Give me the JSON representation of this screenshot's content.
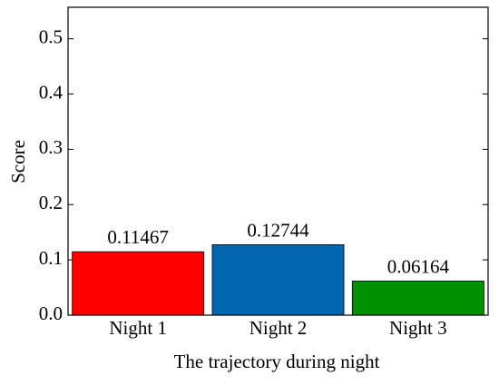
{
  "chart_data": {
    "type": "bar",
    "categories": [
      "Night 1",
      "Night 2",
      "Night 3"
    ],
    "values": [
      0.11467,
      0.12744,
      0.06164
    ],
    "colors": [
      "#ff0000",
      "#0066b0",
      "#009000"
    ],
    "x_label": "The trajectory during night",
    "y_label": "Score",
    "ylim": [
      0,
      0.557
    ],
    "yticks": [
      {
        "value": 0,
        "label": "0.0"
      },
      0.1,
      0.2,
      0.3,
      0.4,
      0.5
    ]
  }
}
